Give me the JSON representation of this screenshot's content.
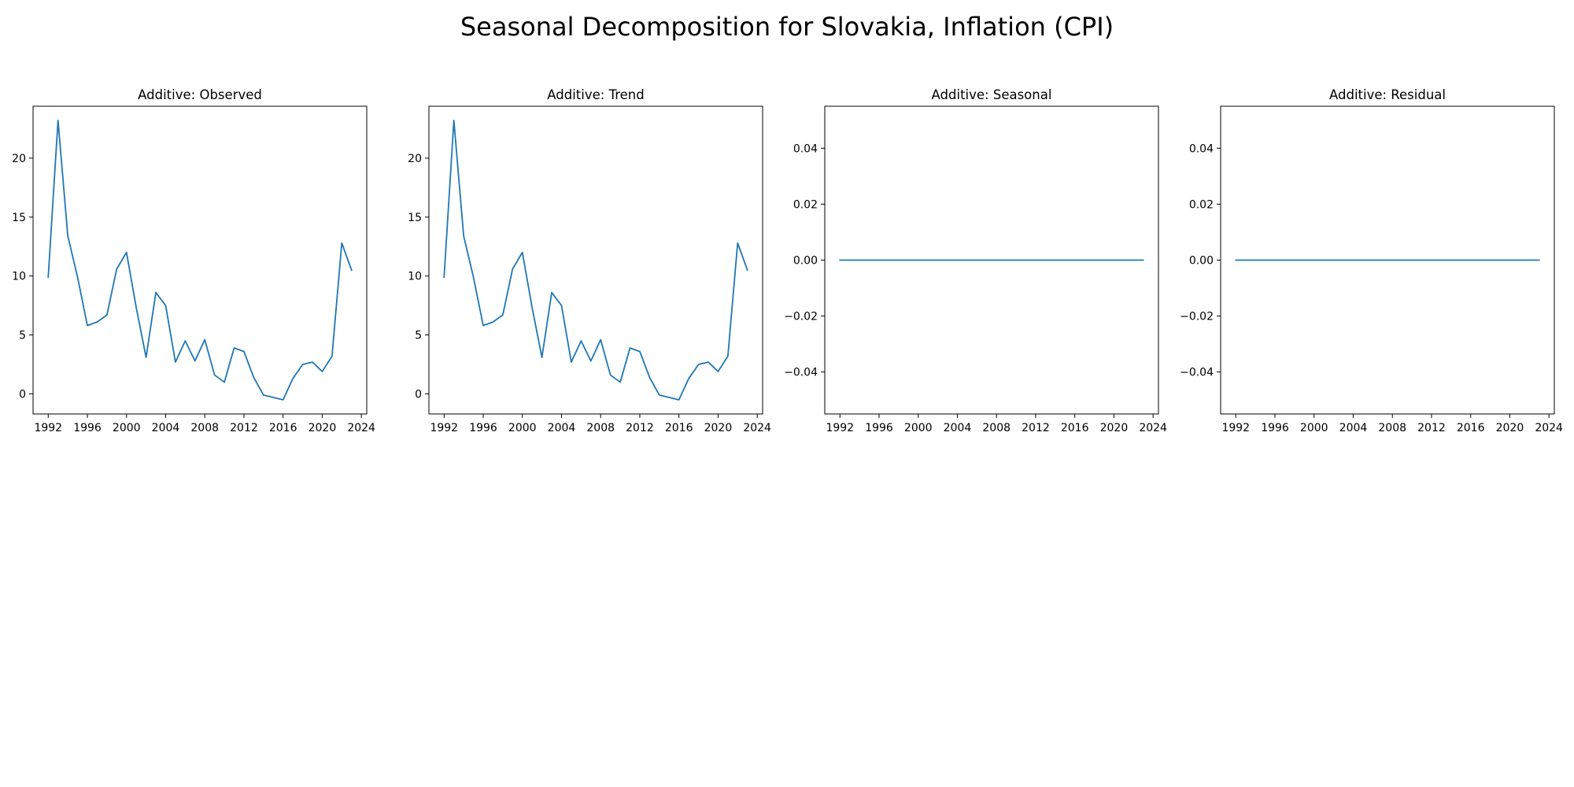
{
  "figure": {
    "title": "Seasonal Decomposition for Slovakia, Inflation (CPI)"
  },
  "line_color": "#1f77b4",
  "chart_data": [
    {
      "type": "line",
      "title": "Additive: Observed",
      "xlabel": "",
      "ylabel": "",
      "grid": false,
      "x": [
        1992,
        1993,
        1994,
        1995,
        1996,
        1997,
        1998,
        1999,
        2000,
        2001,
        2002,
        2003,
        2004,
        2005,
        2006,
        2007,
        2008,
        2009,
        2010,
        2011,
        2012,
        2013,
        2014,
        2015,
        2016,
        2017,
        2018,
        2019,
        2020,
        2021,
        2022,
        2023
      ],
      "values": [
        9.9,
        23.2,
        13.4,
        9.9,
        5.8,
        6.1,
        6.7,
        10.6,
        12.0,
        7.3,
        3.1,
        8.6,
        7.5,
        2.7,
        4.5,
        2.8,
        4.6,
        1.6,
        1.0,
        3.9,
        3.6,
        1.4,
        -0.1,
        -0.3,
        -0.5,
        1.3,
        2.5,
        2.7,
        1.9,
        3.2,
        12.8,
        10.5
      ],
      "xlim": [
        1990.45,
        2024.55
      ],
      "ylim": [
        -1.7,
        24.4
      ],
      "x_ticks": [
        1992,
        1996,
        2000,
        2004,
        2008,
        2012,
        2016,
        2020,
        2024
      ],
      "y_ticks": [
        0,
        5,
        10,
        15,
        20
      ],
      "y_tick_labels": [
        "0",
        "5",
        "10",
        "15",
        "20"
      ]
    },
    {
      "type": "line",
      "title": "Additive: Trend",
      "xlabel": "",
      "ylabel": "",
      "grid": false,
      "x": [
        1992,
        1993,
        1994,
        1995,
        1996,
        1997,
        1998,
        1999,
        2000,
        2001,
        2002,
        2003,
        2004,
        2005,
        2006,
        2007,
        2008,
        2009,
        2010,
        2011,
        2012,
        2013,
        2014,
        2015,
        2016,
        2017,
        2018,
        2019,
        2020,
        2021,
        2022,
        2023
      ],
      "values": [
        9.9,
        23.2,
        13.4,
        9.9,
        5.8,
        6.1,
        6.7,
        10.6,
        12.0,
        7.3,
        3.1,
        8.6,
        7.5,
        2.7,
        4.5,
        2.8,
        4.6,
        1.6,
        1.0,
        3.9,
        3.6,
        1.4,
        -0.1,
        -0.3,
        -0.5,
        1.3,
        2.5,
        2.7,
        1.9,
        3.2,
        12.8,
        10.5
      ],
      "xlim": [
        1990.45,
        2024.55
      ],
      "ylim": [
        -1.7,
        24.4
      ],
      "x_ticks": [
        1992,
        1996,
        2000,
        2004,
        2008,
        2012,
        2016,
        2020,
        2024
      ],
      "y_ticks": [
        0,
        5,
        10,
        15,
        20
      ],
      "y_tick_labels": [
        "0",
        "5",
        "10",
        "15",
        "20"
      ]
    },
    {
      "type": "line",
      "title": "Additive: Seasonal",
      "xlabel": "",
      "ylabel": "",
      "grid": false,
      "x": [
        1992,
        1993,
        1994,
        1995,
        1996,
        1997,
        1998,
        1999,
        2000,
        2001,
        2002,
        2003,
        2004,
        2005,
        2006,
        2007,
        2008,
        2009,
        2010,
        2011,
        2012,
        2013,
        2014,
        2015,
        2016,
        2017,
        2018,
        2019,
        2020,
        2021,
        2022,
        2023
      ],
      "values": [
        0,
        0,
        0,
        0,
        0,
        0,
        0,
        0,
        0,
        0,
        0,
        0,
        0,
        0,
        0,
        0,
        0,
        0,
        0,
        0,
        0,
        0,
        0,
        0,
        0,
        0,
        0,
        0,
        0,
        0,
        0,
        0
      ],
      "xlim": [
        1990.45,
        2024.55
      ],
      "ylim": [
        -0.055,
        0.055
      ],
      "x_ticks": [
        1992,
        1996,
        2000,
        2004,
        2008,
        2012,
        2016,
        2020,
        2024
      ],
      "y_ticks": [
        -0.04,
        -0.02,
        0,
        0.02,
        0.04
      ],
      "y_tick_labels": [
        "−0.04",
        "−0.02",
        "0.00",
        "0.02",
        "0.04"
      ]
    },
    {
      "type": "line",
      "title": "Additive: Residual",
      "xlabel": "",
      "ylabel": "",
      "grid": false,
      "x": [
        1992,
        1993,
        1994,
        1995,
        1996,
        1997,
        1998,
        1999,
        2000,
        2001,
        2002,
        2003,
        2004,
        2005,
        2006,
        2007,
        2008,
        2009,
        2010,
        2011,
        2012,
        2013,
        2014,
        2015,
        2016,
        2017,
        2018,
        2019,
        2020,
        2021,
        2022,
        2023
      ],
      "values": [
        0,
        0,
        0,
        0,
        0,
        0,
        0,
        0,
        0,
        0,
        0,
        0,
        0,
        0,
        0,
        0,
        0,
        0,
        0,
        0,
        0,
        0,
        0,
        0,
        0,
        0,
        0,
        0,
        0,
        0,
        0,
        0
      ],
      "xlim": [
        1990.45,
        2024.55
      ],
      "ylim": [
        -0.055,
        0.055
      ],
      "x_ticks": [
        1992,
        1996,
        2000,
        2004,
        2008,
        2012,
        2016,
        2020,
        2024
      ],
      "y_ticks": [
        -0.04,
        -0.02,
        0,
        0.02,
        0.04
      ],
      "y_tick_labels": [
        "−0.04",
        "−0.02",
        "0.00",
        "0.02",
        "0.04"
      ]
    }
  ]
}
